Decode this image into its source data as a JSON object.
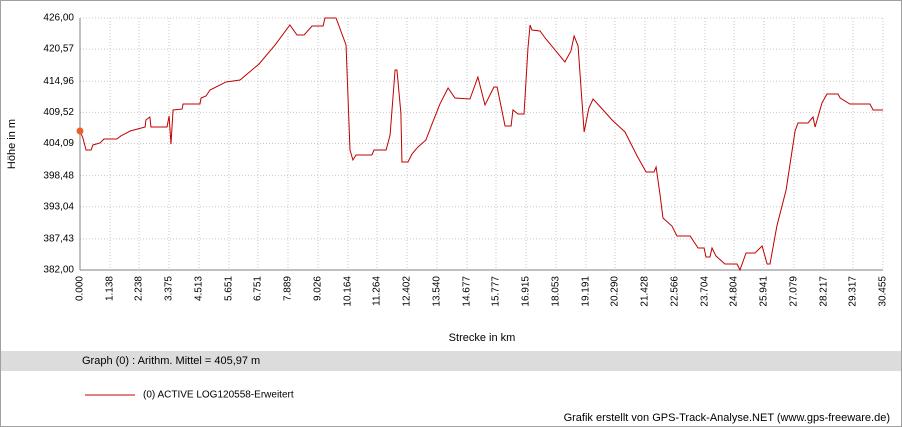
{
  "chart_data": {
    "type": "line",
    "x_label": "Strecke  in  km",
    "y_label": "Höhe  in  m",
    "summary": "Graph (0) :  Arithm. Mittel = 405,97 m",
    "credit": "Grafik erstellt von GPS-Track-Analyse.NET (www.gps-freeware.de)",
    "grid": true,
    "xlim": [
      0,
      30.455
    ],
    "ylim": [
      382,
      426
    ],
    "xticks": [
      {
        "value": 0,
        "label": "0.000"
      },
      {
        "value": 1.138,
        "label": "1.138"
      },
      {
        "value": 2.238,
        "label": "2.238"
      },
      {
        "value": 3.375,
        "label": "3.375"
      },
      {
        "value": 4.513,
        "label": "4.513"
      },
      {
        "value": 5.651,
        "label": "5.651"
      },
      {
        "value": 6.751,
        "label": "6.751"
      },
      {
        "value": 7.889,
        "label": "7.889"
      },
      {
        "value": 9.026,
        "label": "9.026"
      },
      {
        "value": 10.164,
        "label": "10.164"
      },
      {
        "value": 11.264,
        "label": "11.264"
      },
      {
        "value": 12.402,
        "label": "12.402"
      },
      {
        "value": 13.54,
        "label": "13.540"
      },
      {
        "value": 14.677,
        "label": "14.677"
      },
      {
        "value": 15.777,
        "label": "15.777"
      },
      {
        "value": 16.915,
        "label": "16.915"
      },
      {
        "value": 18.053,
        "label": "18.053"
      },
      {
        "value": 19.191,
        "label": "19.191"
      },
      {
        "value": 20.29,
        "label": "20.290"
      },
      {
        "value": 21.428,
        "label": "21.428"
      },
      {
        "value": 22.566,
        "label": "22.566"
      },
      {
        "value": 23.704,
        "label": "23.704"
      },
      {
        "value": 24.804,
        "label": "24.804"
      },
      {
        "value": 25.941,
        "label": "25.941"
      },
      {
        "value": 27.079,
        "label": "27.079"
      },
      {
        "value": 28.217,
        "label": "28.217"
      },
      {
        "value": 29.317,
        "label": "29.317"
      },
      {
        "value": 30.455,
        "label": "30.455"
      }
    ],
    "yticks": [
      {
        "value": 382,
        "label": "382,00"
      },
      {
        "value": 387.43,
        "label": "387,43"
      },
      {
        "value": 393.04,
        "label": "393,04"
      },
      {
        "value": 398.48,
        "label": "398,48"
      },
      {
        "value": 404.09,
        "label": "404,09"
      },
      {
        "value": 409.52,
        "label": "409,52"
      },
      {
        "value": 414.96,
        "label": "414,96"
      },
      {
        "value": 420.57,
        "label": "420,57"
      },
      {
        "value": 426,
        "label": "426,00"
      }
    ],
    "x": [
      0,
      0.11,
      0.23,
      0.42,
      0.49,
      0.76,
      0.91,
      1.4,
      1.55,
      1.9,
      2.47,
      2.5,
      2.65,
      2.69,
      3.3,
      3.38,
      3.45,
      3.53,
      3.87,
      3.91,
      4.55,
      4.59,
      4.78,
      4.93,
      5.54,
      6.07,
      6.79,
      7.4,
      7.96,
      8.23,
      8.5,
      8.8,
      9.22,
      9.29,
      9.71,
      10.09,
      10.24,
      10.35,
      10.47,
      11.07,
      11.15,
      11.61,
      11.76,
      11.95,
      12.02,
      12.17,
      12.21,
      12.44,
      12.59,
      12.82,
      13.12,
      13.35,
      13.65,
      13.96,
      14.22,
      14.79,
      15.09,
      15.36,
      15.7,
      15.82,
      16.12,
      16.35,
      16.42,
      16.61,
      16.84,
      16.99,
      17.07,
      17.14,
      17.45,
      17.64,
      18.02,
      18.39,
      18.62,
      18.74,
      18.89,
      19.12,
      19.3,
      19.46,
      19.84,
      20.18,
      20.67,
      21.13,
      21.47,
      21.77,
      21.85,
      22.0,
      22.11,
      22.45,
      22.64,
      23.14,
      23.44,
      23.67,
      23.74,
      23.89,
      23.97,
      24.12,
      24.46,
      24.92,
      25.03,
      25.26,
      25.6,
      25.87,
      26.06,
      26.17,
      26.43,
      26.78,
      27.12,
      27.23,
      27.61,
      27.8,
      27.88,
      28.14,
      28.33,
      28.75,
      28.83,
      29.2,
      29.96,
      30.08,
      30.455
    ],
    "series": [
      {
        "name": "(0) ACTIVE LOG120558-Erweitert",
        "color": "#c00000",
        "values": [
          406.27,
          405.05,
          402.95,
          402.95,
          403.83,
          404.18,
          404.87,
          404.87,
          405.4,
          406.27,
          406.97,
          408.19,
          408.71,
          406.97,
          406.97,
          408.89,
          404.0,
          409.94,
          410.1,
          410.98,
          410.98,
          412.03,
          412.38,
          413.43,
          414.83,
          415.17,
          417.97,
          421.29,
          424.78,
          423.03,
          423.03,
          424.6,
          424.6,
          426,
          426,
          421.29,
          402.95,
          401.21,
          402.08,
          402.08,
          402.95,
          402.95,
          405.57,
          416.92,
          416.92,
          409.41,
          400.86,
          400.86,
          402.25,
          403.48,
          404.7,
          407.49,
          410.98,
          413.78,
          412.03,
          411.86,
          415.69,
          410.81,
          413.95,
          413.95,
          407.14,
          407.14,
          409.94,
          409.24,
          409.24,
          420.76,
          424.78,
          423.9,
          423.73,
          422.51,
          420.41,
          418.32,
          420.24,
          422.86,
          421.11,
          406.1,
          410.29,
          411.86,
          409.94,
          408.19,
          406.1,
          401.91,
          399.11,
          399.11,
          399.98,
          395.1,
          391.08,
          389.68,
          387.94,
          387.94,
          385.84,
          385.84,
          384.27,
          384.27,
          385.84,
          384.44,
          383.05,
          383.05,
          382,
          384.97,
          384.97,
          386.19,
          383.05,
          383.05,
          389.68,
          395.97,
          406.27,
          407.67,
          407.67,
          408.71,
          406.97,
          411.16,
          412.73,
          412.73,
          412.03,
          410.98,
          410.98,
          409.94,
          409.94
        ]
      }
    ]
  }
}
